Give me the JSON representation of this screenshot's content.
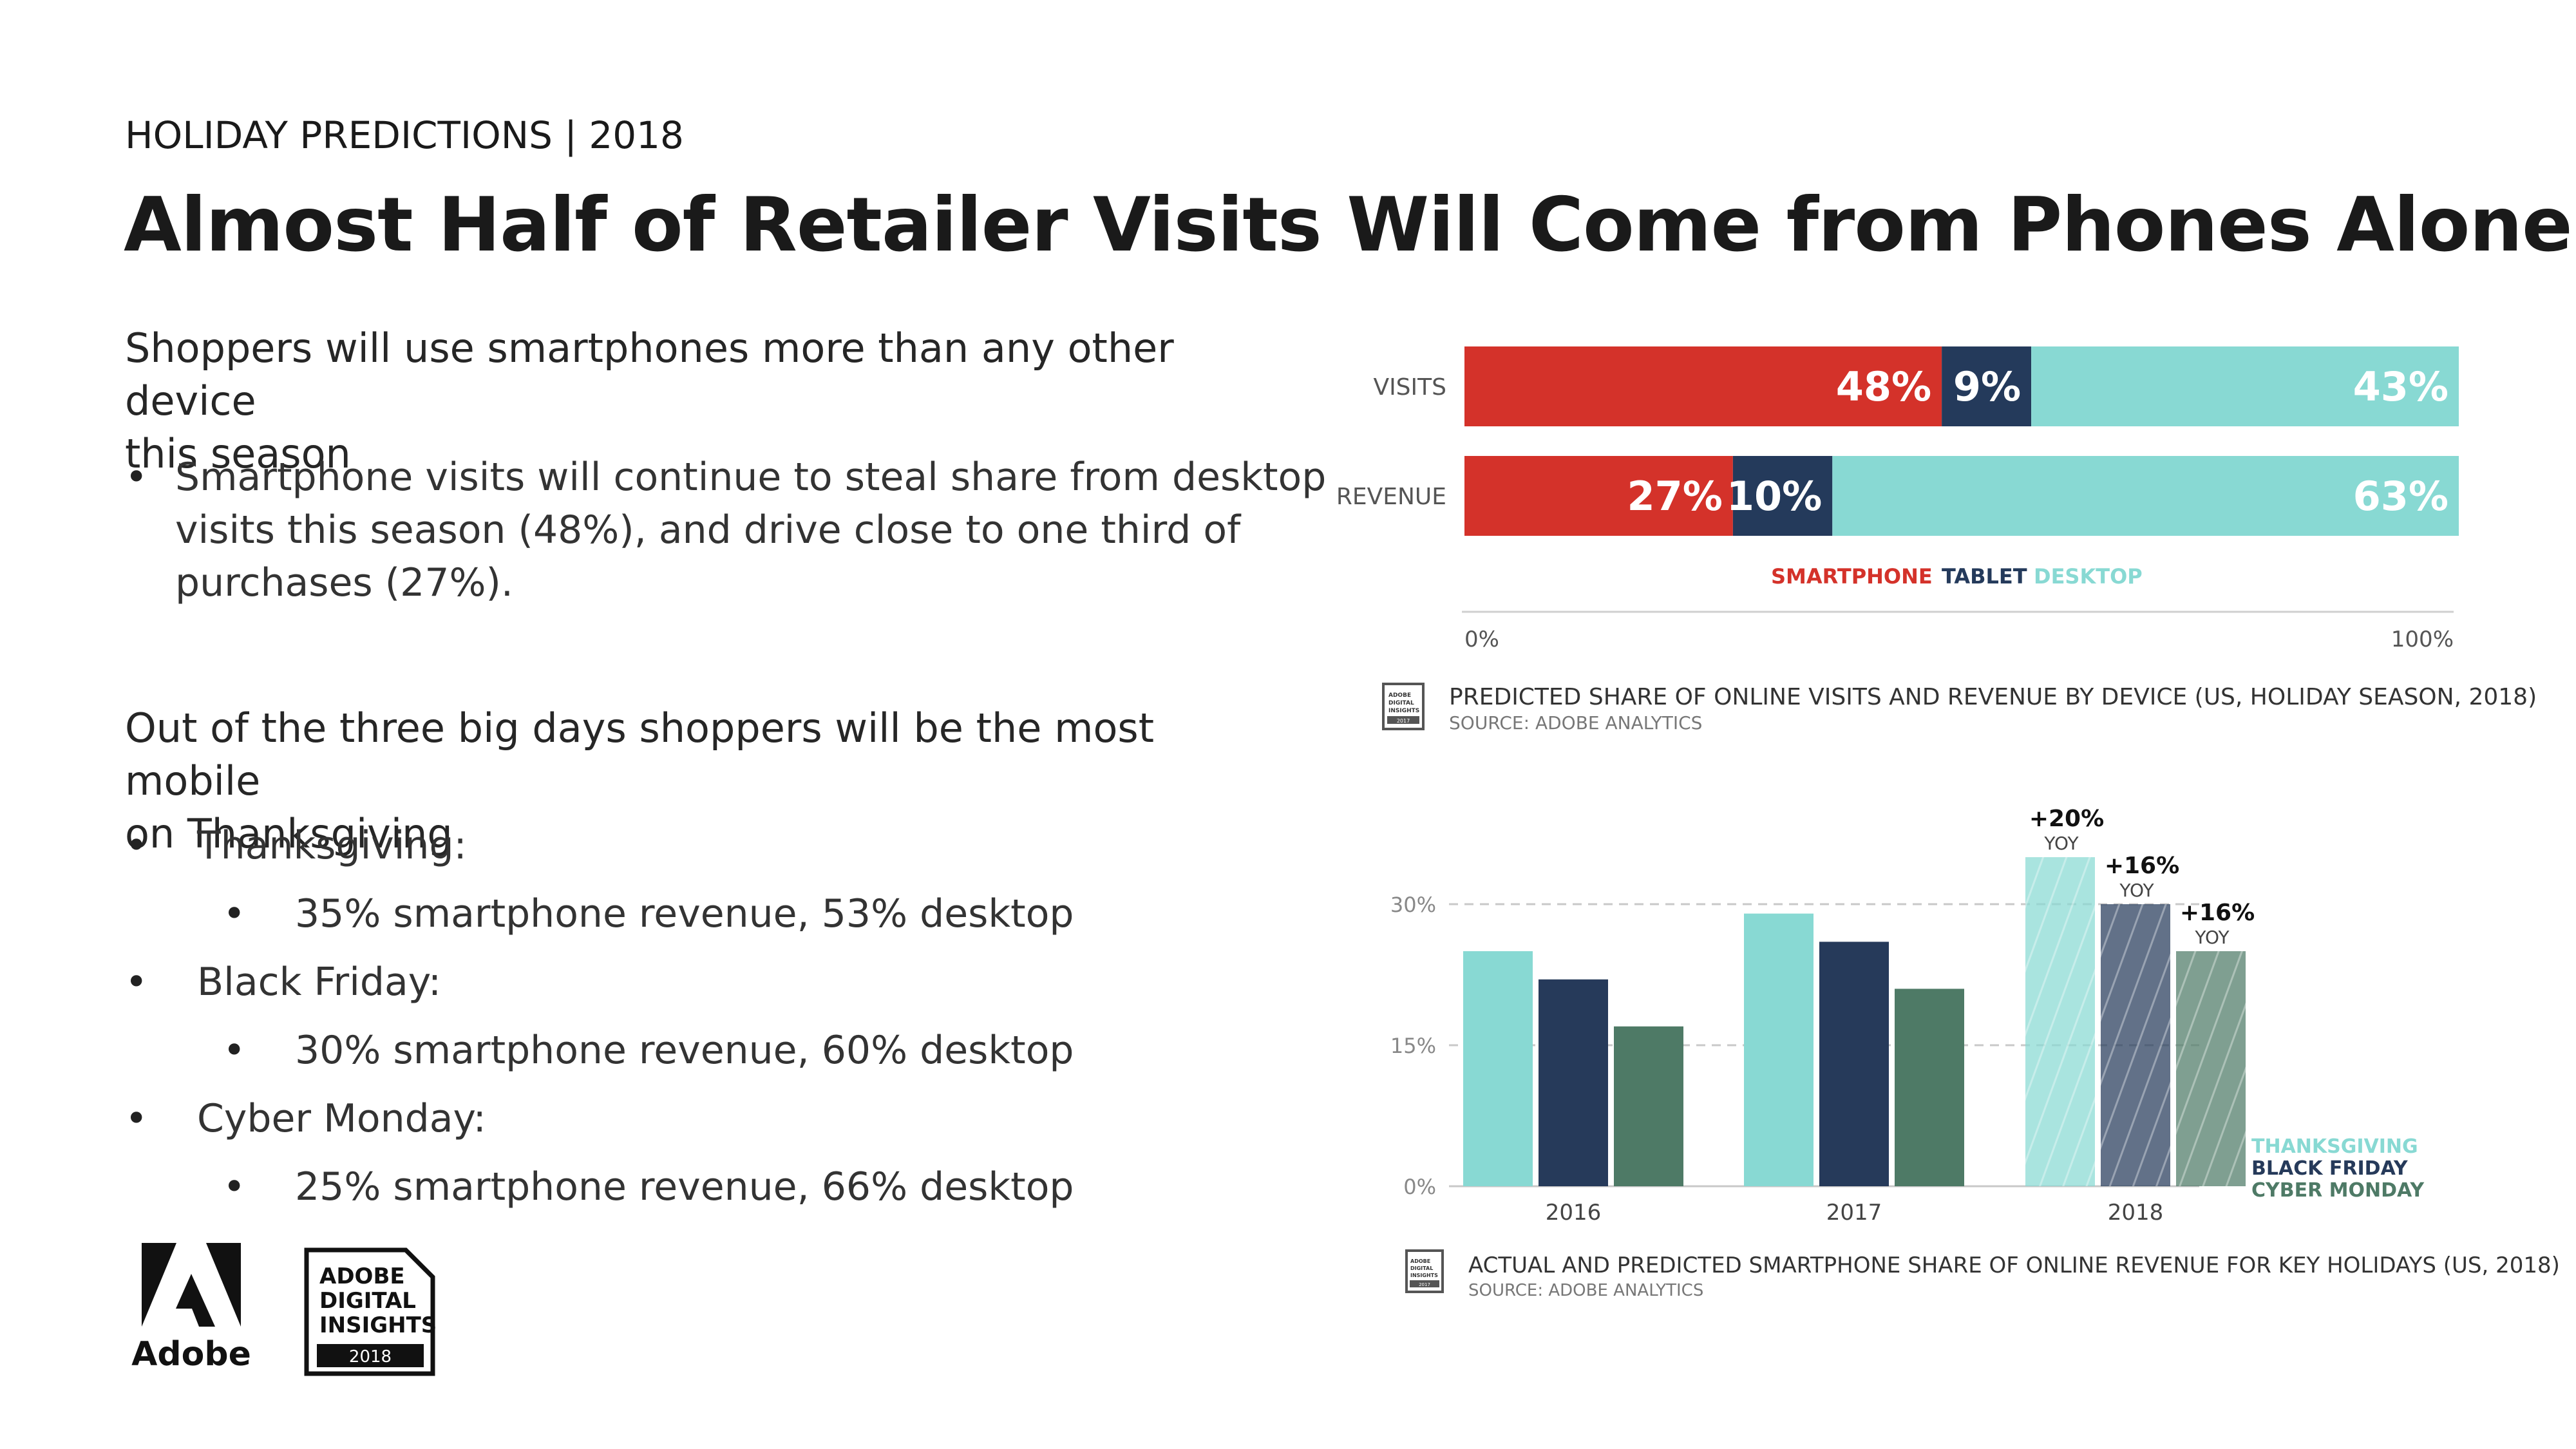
{
  "slide": {
    "eyebrow": "HOLIDAY PREDICTIONS | 2018",
    "title": "Almost Half of Retailer Visits Will Come from Phones Alone"
  },
  "left": {
    "sub1": [
      "Shoppers will use smartphones more than any other device",
      "this season"
    ],
    "bullet1": [
      "Smartphone visits will continue to steal share from desktop",
      "visits this season (48%), and drive close to one third of",
      "purchases (27%)."
    ],
    "sub2": [
      "Out of the three big days shoppers will be the most mobile",
      "on Thanksgiving"
    ],
    "days": [
      {
        "label": "Thanksgiving:",
        "detail": "35% smartphone revenue, 53% desktop"
      },
      {
        "label": "Black Friday:",
        "detail": "30% smartphone revenue, 60% desktop"
      },
      {
        "label": "Cyber Monday:",
        "detail": "25% smartphone revenue, 66% desktop"
      }
    ]
  },
  "logos": {
    "adobe": "Adobe",
    "adi_lines": [
      "ADOBE",
      "DIGITAL",
      "INSIGHTS"
    ],
    "adi_year": "2018",
    "mini_lines": [
      "ADOBE",
      "DIGITAL",
      "INSIGHTS"
    ],
    "mini_year": "2017"
  },
  "colors": {
    "smartphone": "#d4322a",
    "tablet": "#243a5b",
    "desktop": "#88d9d3",
    "thanksgiving": "#88d9d3",
    "black_friday": "#263a5a",
    "cyber_monday": "#4e7a66"
  },
  "chart_data": [
    {
      "type": "bar",
      "orientation": "horizontal-stacked",
      "categories": [
        "VISITS",
        "REVENUE"
      ],
      "series": [
        {
          "name": "SMARTPHONE",
          "values": [
            48,
            27
          ]
        },
        {
          "name": "TABLET",
          "values": [
            9,
            10
          ]
        },
        {
          "name": "DESKTOP",
          "values": [
            43,
            63
          ]
        }
      ],
      "labels": [
        [
          "48%",
          "9%",
          "43%"
        ],
        [
          "27%",
          "10%",
          "63%"
        ]
      ],
      "xlim": [
        0,
        100
      ],
      "x_ticks": [
        "0%",
        "100%"
      ],
      "legend": "bottom-center",
      "caption": "PREDICTED SHARE OF ONLINE VISITS AND REVENUE BY DEVICE (US, HOLIDAY SEASON, 2018)",
      "source": "SOURCE: ADOBE ANALYTICS"
    },
    {
      "type": "bar",
      "categories": [
        "2016",
        "2017",
        "2018"
      ],
      "series": [
        {
          "name": "THANKSGIVING",
          "values": [
            25,
            29,
            35
          ]
        },
        {
          "name": "BLACK FRIDAY",
          "values": [
            22,
            26,
            30
          ]
        },
        {
          "name": "CYBER MONDAY",
          "values": [
            17,
            21,
            25
          ]
        }
      ],
      "predicted_category": "2018",
      "annotations": [
        {
          "series": "THANKSGIVING",
          "category": "2018",
          "value": "+20%",
          "unit": "YOY"
        },
        {
          "series": "BLACK FRIDAY",
          "category": "2018",
          "value": "+16%",
          "unit": "YOY"
        },
        {
          "series": "CYBER MONDAY",
          "category": "2018",
          "value": "+16%",
          "unit": "YOY"
        }
      ],
      "ylim": [
        0,
        40
      ],
      "y_ticks": [
        {
          "value": 0,
          "label": "0%"
        },
        {
          "value": 15,
          "label": "15%"
        },
        {
          "value": 30,
          "label": "30%"
        }
      ],
      "grid": "dashed-horizontal",
      "legend": "bottom-right",
      "caption": "ACTUAL AND PREDICTED SMARTPHONE SHARE OF ONLINE REVENUE FOR KEY HOLIDAYS (US, 2018)",
      "source": "SOURCE: ADOBE ANALYTICS"
    }
  ]
}
